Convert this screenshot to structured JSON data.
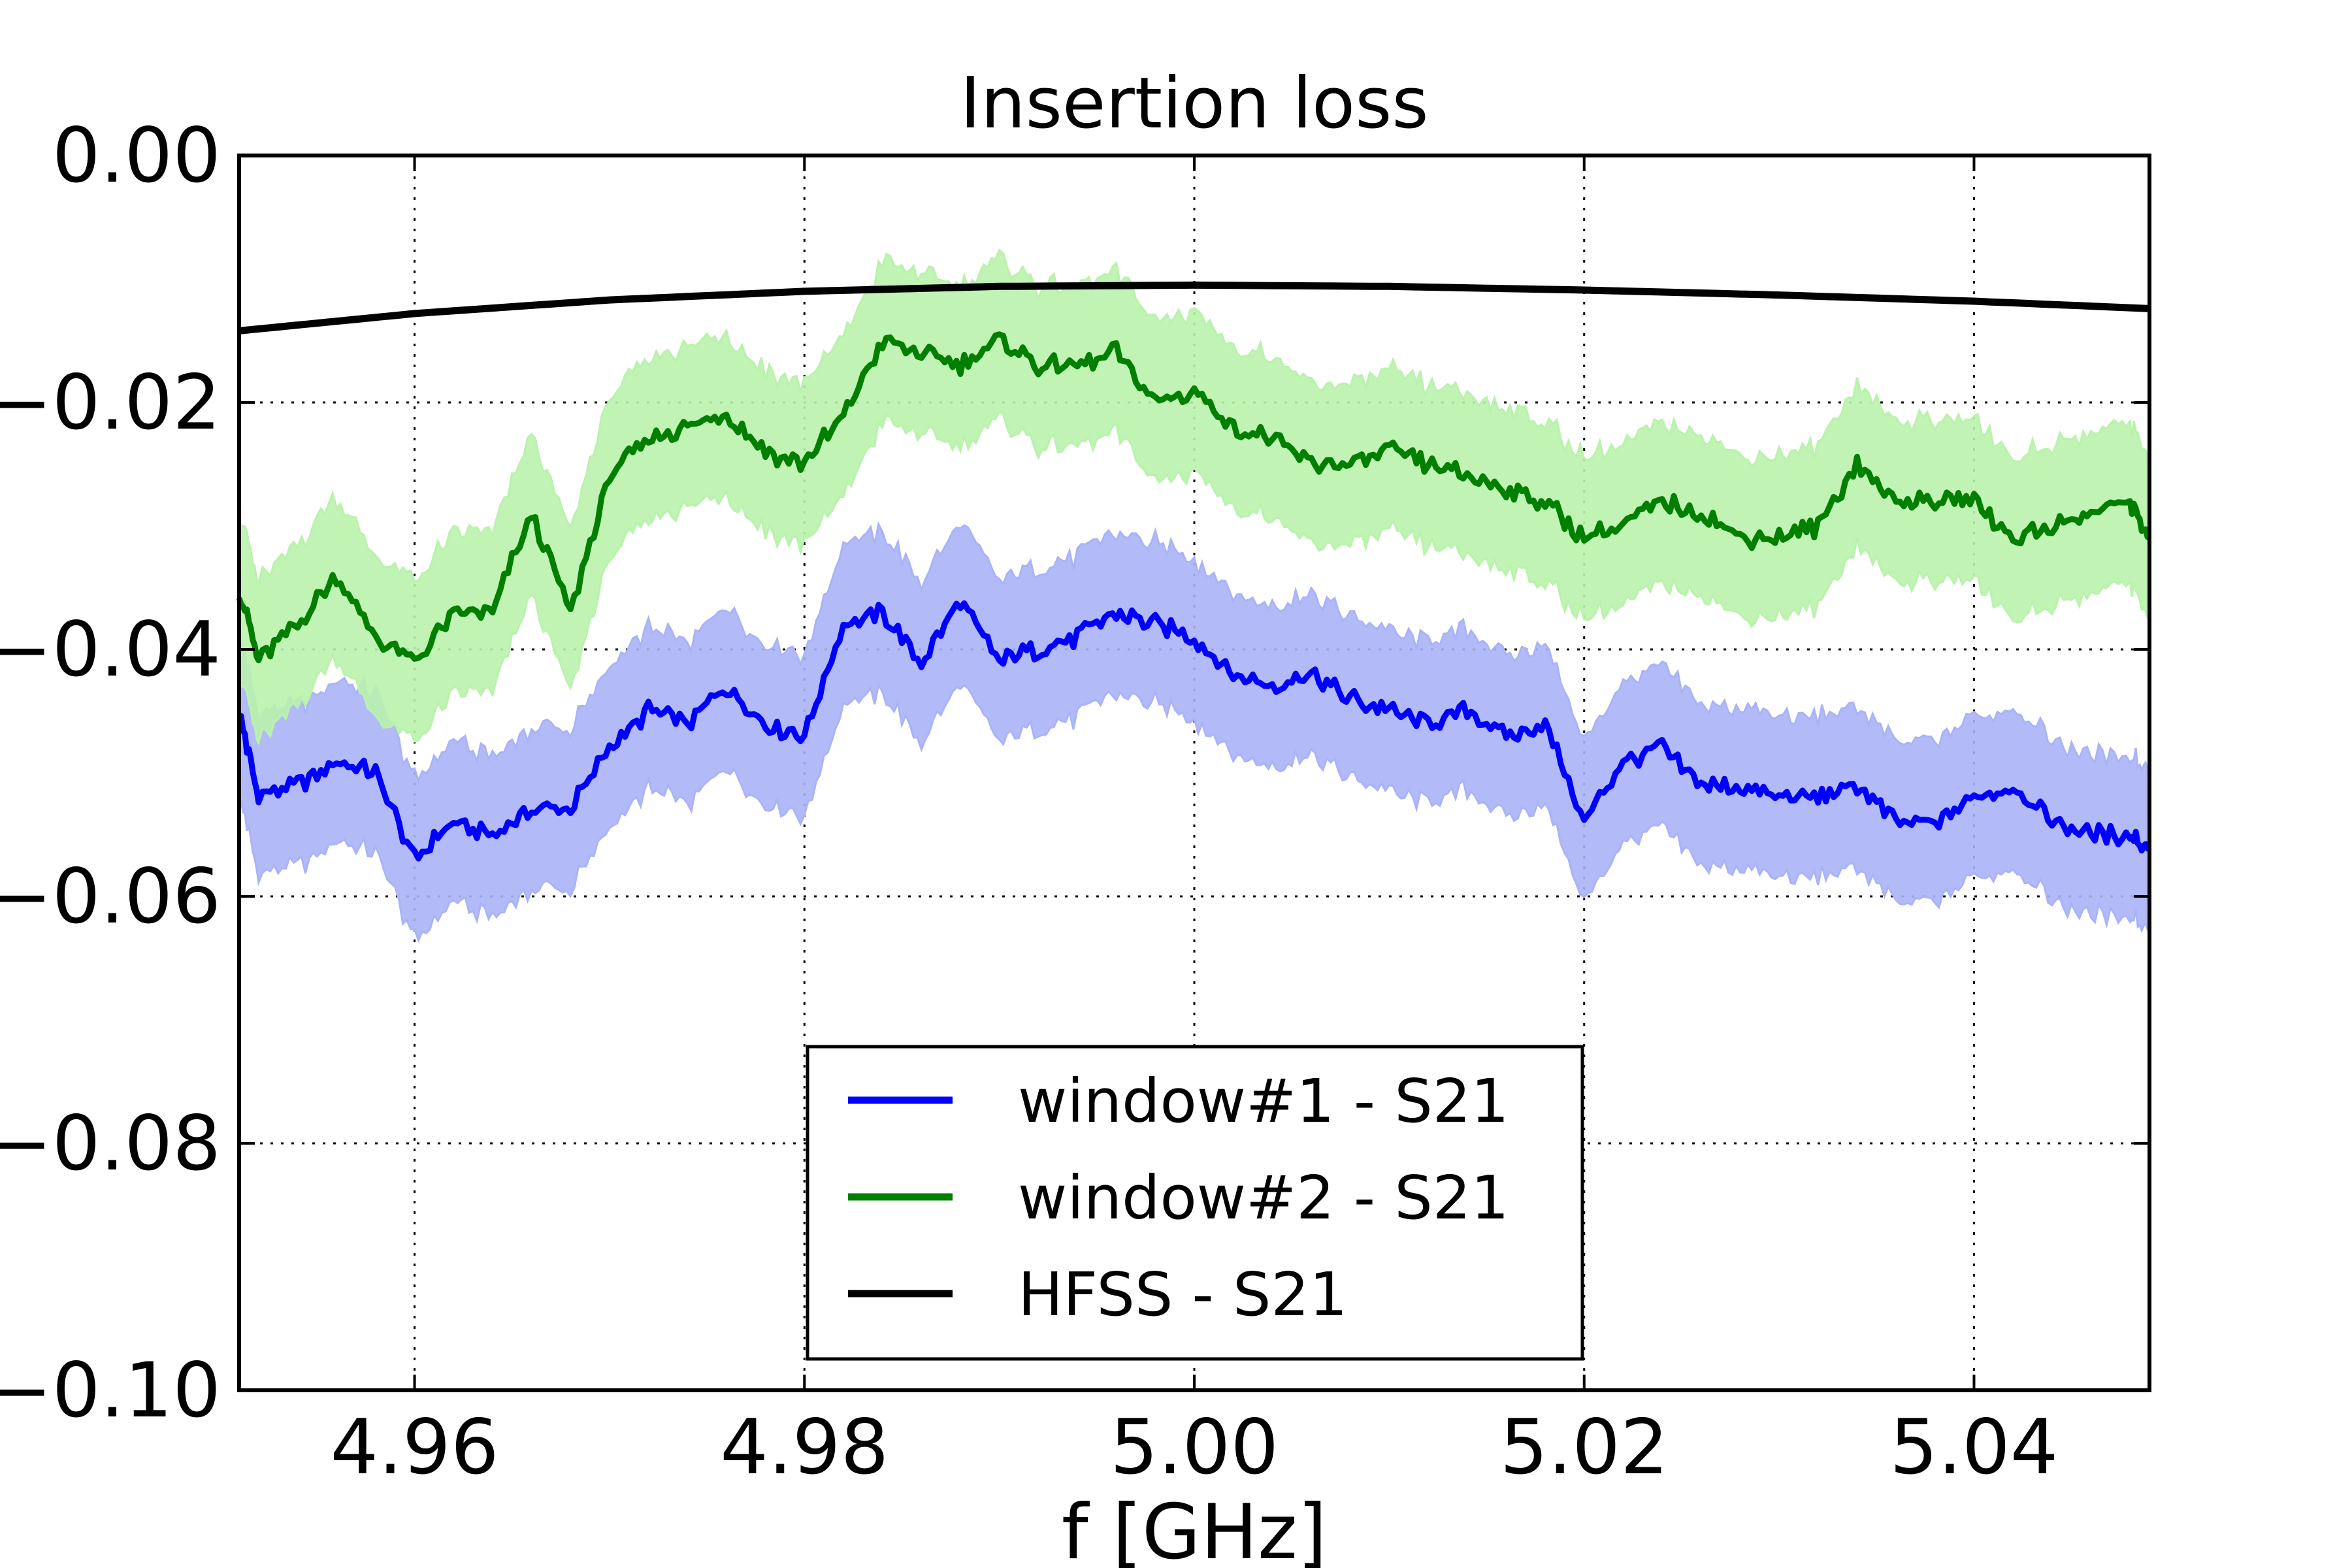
{
  "chart_data": {
    "type": "line",
    "title": "Insertion loss",
    "xlabel": "f [GHz]",
    "ylabel": "",
    "xlim": [
      4.951,
      5.049
    ],
    "ylim": [
      -0.1,
      0.0
    ],
    "xticks": [
      4.96,
      4.98,
      5.0,
      5.02,
      5.04
    ],
    "xtick_labels": [
      "4.96",
      "4.98",
      "5.00",
      "5.02",
      "5.04"
    ],
    "yticks": [
      0.0,
      -0.02,
      -0.04,
      -0.06,
      -0.08,
      -0.1
    ],
    "ytick_labels": [
      "0.00",
      "−0.02",
      "−0.04",
      "−0.06",
      "−0.08",
      "−0.10"
    ],
    "grid": true,
    "legend_position": "lower-center",
    "series": [
      {
        "name": "window#1 - S21",
        "color": "#0000ff",
        "band_color": "#aab3f7",
        "band_halfwidth": 0.0065,
        "x": [
          4.951,
          4.952,
          4.954,
          4.956,
          4.958,
          4.96,
          4.962,
          4.964,
          4.966,
          4.968,
          4.97,
          4.972,
          4.974,
          4.976,
          4.978,
          4.98,
          4.982,
          4.984,
          4.986,
          4.988,
          4.99,
          4.992,
          4.994,
          4.996,
          4.998,
          5.0,
          5.002,
          5.004,
          5.006,
          5.008,
          5.01,
          5.012,
          5.014,
          5.016,
          5.018,
          5.02,
          5.022,
          5.024,
          5.026,
          5.028,
          5.03,
          5.032,
          5.034,
          5.036,
          5.038,
          5.04,
          5.042,
          5.044,
          5.046,
          5.048,
          5.049
        ],
        "y": [
          -0.045,
          -0.052,
          -0.051,
          -0.049,
          -0.05,
          -0.057,
          -0.054,
          -0.055,
          -0.053,
          -0.053,
          -0.048,
          -0.045,
          -0.046,
          -0.043,
          -0.046,
          -0.047,
          -0.038,
          -0.037,
          -0.041,
          -0.036,
          -0.041,
          -0.04,
          -0.039,
          -0.037,
          -0.038,
          -0.039,
          -0.042,
          -0.043,
          -0.042,
          -0.044,
          -0.045,
          -0.046,
          -0.045,
          -0.047,
          -0.046,
          -0.054,
          -0.049,
          -0.048,
          -0.051,
          -0.051,
          -0.052,
          -0.052,
          -0.051,
          -0.054,
          -0.054,
          -0.052,
          -0.051,
          -0.054,
          -0.055,
          -0.055,
          -0.056
        ]
      },
      {
        "name": "window#2 - S21",
        "color": "#007f00",
        "band_color": "#b9f2ac",
        "band_halfwidth": 0.0065,
        "x": [
          4.951,
          4.952,
          4.954,
          4.956,
          4.958,
          4.96,
          4.962,
          4.964,
          4.966,
          4.968,
          4.97,
          4.972,
          4.974,
          4.976,
          4.978,
          4.98,
          4.982,
          4.984,
          4.986,
          4.988,
          4.99,
          4.992,
          4.994,
          4.996,
          4.998,
          5.0,
          5.002,
          5.004,
          5.006,
          5.008,
          5.01,
          5.012,
          5.014,
          5.016,
          5.018,
          5.02,
          5.022,
          5.024,
          5.026,
          5.028,
          5.03,
          5.032,
          5.034,
          5.036,
          5.038,
          5.04,
          5.042,
          5.044,
          5.046,
          5.048,
          5.049
        ],
        "y": [
          -0.035,
          -0.041,
          -0.038,
          -0.034,
          -0.039,
          -0.041,
          -0.037,
          -0.037,
          -0.029,
          -0.037,
          -0.026,
          -0.023,
          -0.022,
          -0.021,
          -0.024,
          -0.025,
          -0.021,
          -0.015,
          -0.016,
          -0.017,
          -0.015,
          -0.017,
          -0.017,
          -0.016,
          -0.02,
          -0.019,
          -0.022,
          -0.023,
          -0.025,
          -0.025,
          -0.024,
          -0.025,
          -0.026,
          -0.027,
          -0.028,
          -0.031,
          -0.03,
          -0.028,
          -0.029,
          -0.031,
          -0.031,
          -0.03,
          -0.025,
          -0.028,
          -0.028,
          -0.028,
          -0.031,
          -0.03,
          -0.029,
          -0.028,
          -0.031
        ]
      },
      {
        "name": "HFSS - S21",
        "color": "#000000",
        "x": [
          4.951,
          4.96,
          4.97,
          4.98,
          4.99,
          5.0,
          5.01,
          5.02,
          5.03,
          5.04,
          5.049
        ],
        "y": [
          -0.0142,
          -0.0128,
          -0.0117,
          -0.011,
          -0.0106,
          -0.0105,
          -0.0106,
          -0.0109,
          -0.0113,
          -0.0118,
          -0.0124
        ]
      }
    ]
  }
}
